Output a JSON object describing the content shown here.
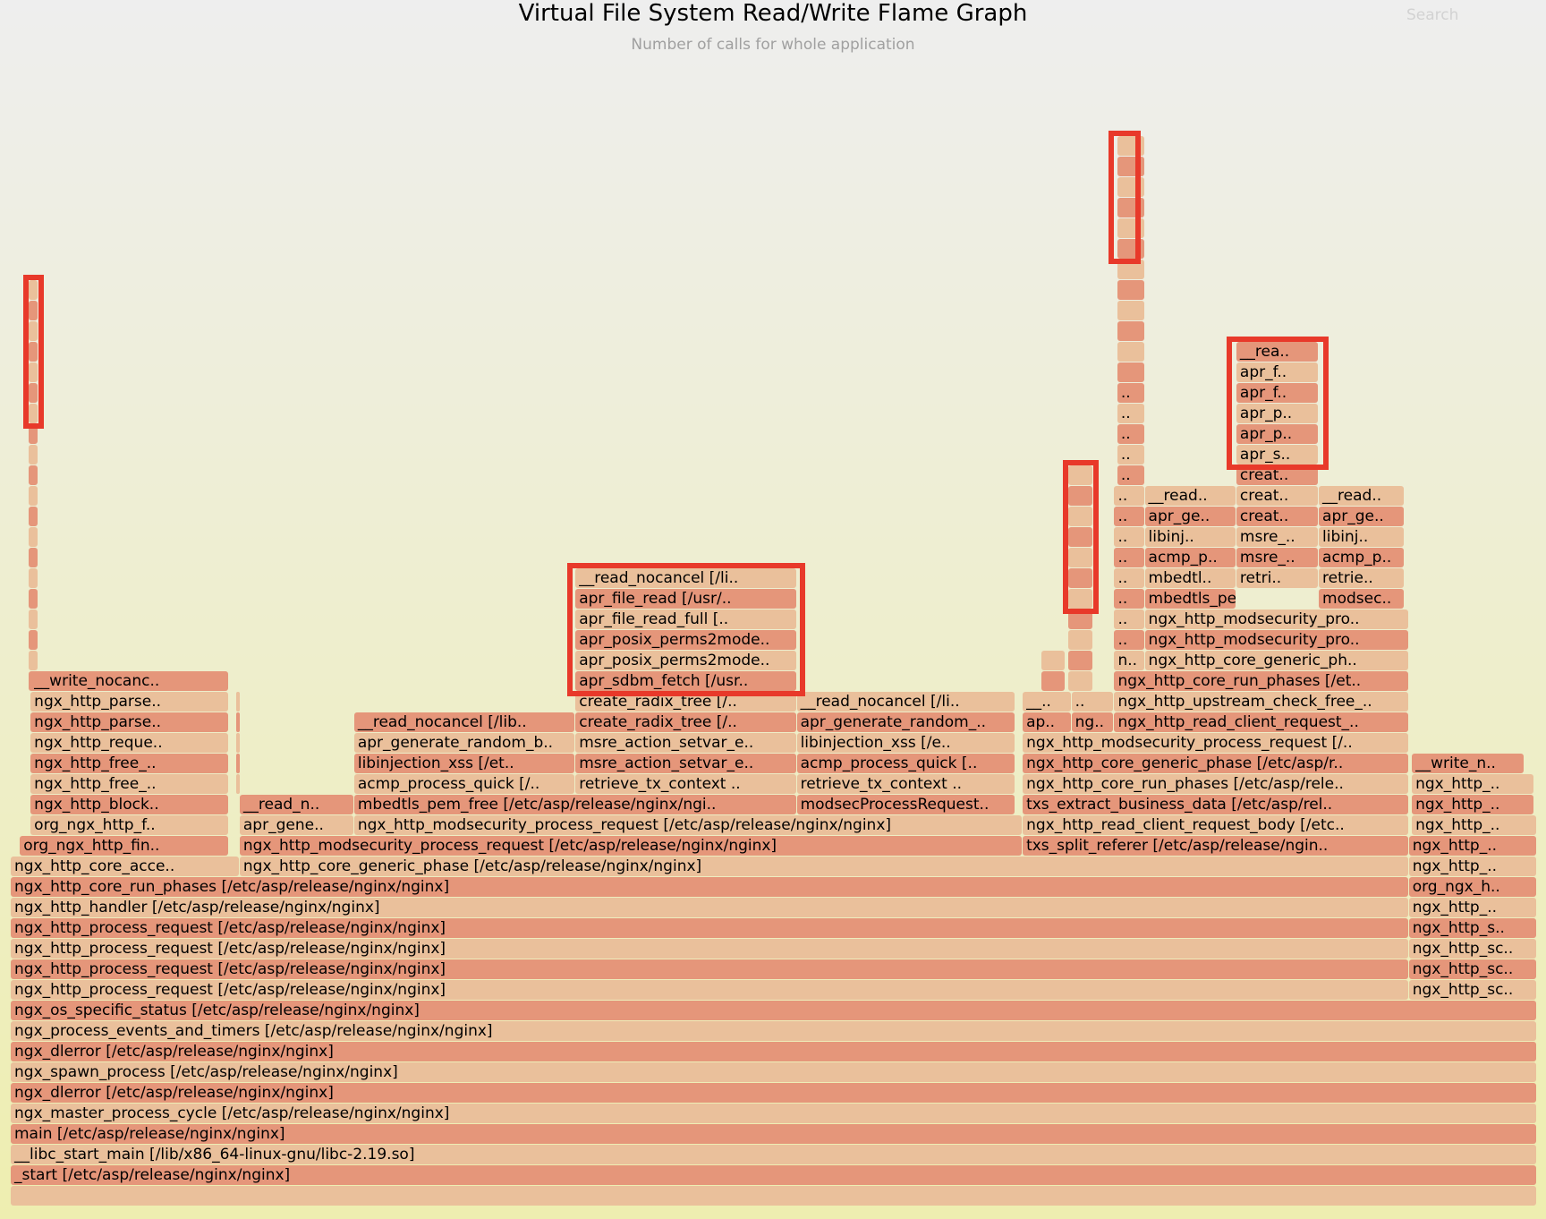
{
  "header": {
    "title": "Virtual File System Read/Write Flame Graph",
    "subtitle": "Number of calls for whole application",
    "search_label": "Search"
  },
  "colors": {
    "frame_dark": "#e5967a",
    "frame_light": "#eac09b",
    "highlight": "#e8392a",
    "background_top": "#eeeeee",
    "background_bottom": "#eeeeb0"
  },
  "chart_data": {
    "type": "flame_graph",
    "title": "Virtual File System Read/Write Flame Graph",
    "subtitle": "Number of calls for whole application",
    "unit": "calls",
    "total_samples": 1000,
    "depth_levels": 55,
    "frames": [
      {
        "label": "",
        "start": 0,
        "samples": 1000,
        "depth": 0
      },
      {
        "label": "_start [/etc/asp/release/nginx/nginx]",
        "start": 0,
        "samples": 1000,
        "depth": 1
      },
      {
        "label": "__libc_start_main [/lib/x86_64-linux-gnu/libc-2.19.so]",
        "start": 0,
        "samples": 1000,
        "depth": 2
      },
      {
        "label": "main [/etc/asp/release/nginx/nginx]",
        "start": 0,
        "samples": 1000,
        "depth": 3
      },
      {
        "label": "ngx_master_process_cycle [/etc/asp/release/nginx/nginx]",
        "start": 0,
        "samples": 1000,
        "depth": 4
      },
      {
        "label": "ngx_dlerror [/etc/asp/release/nginx/nginx]",
        "start": 0,
        "samples": 1000,
        "depth": 5
      },
      {
        "label": "ngx_spawn_process [/etc/asp/release/nginx/nginx]",
        "start": 0,
        "samples": 1000,
        "depth": 6
      },
      {
        "label": "ngx_dlerror [/etc/asp/release/nginx/nginx]",
        "start": 0,
        "samples": 1000,
        "depth": 7
      },
      {
        "label": "ngx_process_events_and_timers [/etc/asp/release/nginx/nginx]",
        "start": 0,
        "samples": 1000,
        "depth": 8
      },
      {
        "label": "ngx_os_specific_status [/etc/asp/release/nginx/nginx]",
        "start": 0,
        "samples": 1000,
        "depth": 9
      },
      {
        "label": "ngx_http_process_request [/etc/asp/release/nginx/nginx]",
        "start": 0,
        "samples": 916,
        "depth": 10
      },
      {
        "label": "ngx_http_process_request [/etc/asp/release/nginx/nginx]",
        "start": 0,
        "samples": 916,
        "depth": 11
      },
      {
        "label": "ngx_http_process_request [/etc/asp/release/nginx/nginx]",
        "start": 0,
        "samples": 916,
        "depth": 12
      },
      {
        "label": "ngx_http_process_request [/etc/asp/release/nginx/nginx]",
        "start": 0,
        "samples": 916,
        "depth": 13
      },
      {
        "label": "ngx_http_handler [/etc/asp/release/nginx/nginx]",
        "start": 0,
        "samples": 916,
        "depth": 14
      },
      {
        "label": "ngx_http_core_run_phases [/etc/asp/release/nginx/nginx]",
        "start": 0,
        "samples": 916,
        "depth": 15
      },
      {
        "label": "ngx_http_core_acce..",
        "start": 0,
        "samples": 150,
        "depth": 16
      },
      {
        "label": "ngx_http_core_generic_phase [/etc/asp/release/nginx/nginx]",
        "start": 150,
        "samples": 766,
        "depth": 16
      },
      {
        "label": "ngx_http_sc..",
        "start": 916,
        "samples": 84,
        "depth": 10
      },
      {
        "label": "ngx_http_sc..",
        "start": 916,
        "samples": 84,
        "depth": 11
      },
      {
        "label": "ngx_http_sc..",
        "start": 916,
        "samples": 84,
        "depth": 12
      },
      {
        "label": "ngx_http_s..",
        "start": 916,
        "samples": 84,
        "depth": 13
      },
      {
        "label": "ngx_http_..",
        "start": 916,
        "samples": 84,
        "depth": 14
      },
      {
        "label": "org_ngx_h..",
        "start": 916,
        "samples": 84,
        "depth": 15
      },
      {
        "label": "ngx_http_..",
        "start": 916,
        "samples": 84,
        "depth": 16
      },
      {
        "label": "ngx_http_..",
        "start": 916,
        "samples": 84,
        "depth": 17
      },
      {
        "label": "ngx_http_..",
        "start": 918,
        "samples": 82,
        "depth": 18
      },
      {
        "label": "ngx_http_..",
        "start": 918,
        "samples": 80,
        "depth": 19
      },
      {
        "label": "ngx_http_..",
        "start": 918,
        "samples": 80,
        "depth": 20
      },
      {
        "label": "__write_n..",
        "start": 918,
        "samples": 74,
        "depth": 21
      },
      {
        "label": "org_ngx_http_fin..",
        "start": 6,
        "samples": 137,
        "depth": 17
      },
      {
        "label": "org_ngx_http_f..",
        "start": 13,
        "samples": 130,
        "depth": 18
      },
      {
        "label": "ngx_http_block..",
        "start": 13,
        "samples": 130,
        "depth": 19
      },
      {
        "label": "ngx_http_free_..",
        "start": 13,
        "samples": 130,
        "depth": 20
      },
      {
        "label": "ngx_http_free_..",
        "start": 13,
        "samples": 130,
        "depth": 21
      },
      {
        "label": "ngx_http_reque..",
        "start": 13,
        "samples": 130,
        "depth": 22
      },
      {
        "label": "ngx_http_parse..",
        "start": 13,
        "samples": 130,
        "depth": 23
      },
      {
        "label": "ngx_http_parse..",
        "start": 13,
        "samples": 130,
        "depth": 24
      },
      {
        "label": "__write_nocanc..",
        "start": 13,
        "samples": 130,
        "depth": 25
      },
      {
        "label": "ngx_http_modsecurity_process_request [/etc/asp/release/nginx/nginx]",
        "start": 150,
        "samples": 513,
        "depth": 17
      },
      {
        "label": "apr_gene..",
        "start": 150,
        "samples": 75,
        "depth": 18
      },
      {
        "label": "__read_n..",
        "start": 150,
        "samples": 75,
        "depth": 19
      },
      {
        "label": "ngx_http_modsecurity_process_request [/etc/asp/release/nginx/nginx]",
        "start": 225,
        "samples": 438,
        "depth": 18
      },
      {
        "label": "mbedtls_pem_free [/etc/asp/release/nginx/ngi..",
        "start": 225,
        "samples": 290,
        "depth": 19
      },
      {
        "label": "acmp_process_quick [/..",
        "start": 225,
        "samples": 145,
        "depth": 20
      },
      {
        "label": "libinjection_xss [/et..",
        "start": 225,
        "samples": 145,
        "depth": 21
      },
      {
        "label": "apr_generate_random_b..",
        "start": 225,
        "samples": 145,
        "depth": 22
      },
      {
        "label": "__read_nocancel [/lib..",
        "start": 225,
        "samples": 145,
        "depth": 23
      },
      {
        "label": "retrieve_tx_context ..",
        "start": 370,
        "samples": 145,
        "depth": 20
      },
      {
        "label": "msre_action_setvar_e..",
        "start": 370,
        "samples": 145,
        "depth": 21
      },
      {
        "label": "msre_action_setvar_e..",
        "start": 370,
        "samples": 145,
        "depth": 22
      },
      {
        "label": "create_radix_tree [/..",
        "start": 370,
        "samples": 145,
        "depth": 23
      },
      {
        "label": "create_radix_tree [/..",
        "start": 370,
        "samples": 145,
        "depth": 24
      },
      {
        "label": "apr_sdbm_fetch [/usr..",
        "start": 370,
        "samples": 145,
        "depth": 25
      },
      {
        "label": "apr_posix_perms2mode..",
        "start": 370,
        "samples": 145,
        "depth": 26
      },
      {
        "label": "apr_posix_perms2mode..",
        "start": 370,
        "samples": 145,
        "depth": 27
      },
      {
        "label": "apr_file_read_full [..",
        "start": 370,
        "samples": 145,
        "depth": 28
      },
      {
        "label": "apr_file_read [/usr/..",
        "start": 370,
        "samples": 145,
        "depth": 29
      },
      {
        "label": "__read_nocancel [/li..",
        "start": 370,
        "samples": 145,
        "depth": 30
      },
      {
        "label": "modsecProcessRequest..",
        "start": 515,
        "samples": 143,
        "depth": 19
      },
      {
        "label": "retrieve_tx_context ..",
        "start": 515,
        "samples": 143,
        "depth": 20
      },
      {
        "label": "acmp_process_quick [..",
        "start": 515,
        "samples": 143,
        "depth": 21
      },
      {
        "label": "libinjection_xss [/e..",
        "start": 515,
        "samples": 143,
        "depth": 22
      },
      {
        "label": "apr_generate_random_..",
        "start": 515,
        "samples": 143,
        "depth": 23
      },
      {
        "label": "__read_nocancel [/li..",
        "start": 515,
        "samples": 143,
        "depth": 24
      },
      {
        "label": "txs_split_referer [/etc/asp/release/ngin..",
        "start": 663,
        "samples": 253,
        "depth": 17
      },
      {
        "label": "ngx_http_read_client_request_body [/etc..",
        "start": 663,
        "samples": 253,
        "depth": 18
      },
      {
        "label": "txs_extract_business_data [/etc/asp/rel..",
        "start": 663,
        "samples": 253,
        "depth": 19
      },
      {
        "label": "ngx_http_core_run_phases [/etc/asp/rele..",
        "start": 663,
        "samples": 253,
        "depth": 20
      },
      {
        "label": "ngx_http_core_generic_phase [/etc/asp/r..",
        "start": 663,
        "samples": 253,
        "depth": 21
      },
      {
        "label": "ngx_http_modsecurity_process_request [/..",
        "start": 663,
        "samples": 253,
        "depth": 22
      },
      {
        "label": "ap..",
        "start": 663,
        "samples": 32,
        "depth": 23
      },
      {
        "label": "__..",
        "start": 663,
        "samples": 32,
        "depth": 24
      },
      {
        "label": "ng..",
        "start": 695,
        "samples": 28,
        "depth": 23
      },
      {
        "label": "..",
        "start": 695,
        "samples": 28,
        "depth": 24
      },
      {
        "label": "ngx_http_read_client_request_..",
        "start": 723,
        "samples": 193,
        "depth": 23
      },
      {
        "label": "ngx_http_upstream_check_free_..",
        "start": 723,
        "samples": 193,
        "depth": 24
      },
      {
        "label": "ngx_http_core_run_phases [/et..",
        "start": 723,
        "samples": 193,
        "depth": 25
      },
      {
        "label": "n..",
        "start": 723,
        "samples": 20,
        "depth": 26
      },
      {
        "label": "..",
        "start": 723,
        "samples": 20,
        "depth": 27
      },
      {
        "label": "..",
        "start": 723,
        "samples": 20,
        "depth": 28
      },
      {
        "label": "..",
        "start": 723,
        "samples": 20,
        "depth": 29
      },
      {
        "label": "..",
        "start": 723,
        "samples": 20,
        "depth": 30
      },
      {
        "label": "..",
        "start": 723,
        "samples": 20,
        "depth": 31
      },
      {
        "label": "..",
        "start": 723,
        "samples": 20,
        "depth": 32
      },
      {
        "label": "..",
        "start": 723,
        "samples": 20,
        "depth": 33
      },
      {
        "label": "..",
        "start": 723,
        "samples": 20,
        "depth": 34
      },
      {
        "label": "..",
        "start": 725,
        "samples": 18,
        "depth": 35
      },
      {
        "label": "..",
        "start": 725,
        "samples": 18,
        "depth": 36
      },
      {
        "label": "..",
        "start": 725,
        "samples": 18,
        "depth": 37
      },
      {
        "label": "..",
        "start": 725,
        "samples": 18,
        "depth": 38
      },
      {
        "label": "..",
        "start": 725,
        "samples": 18,
        "depth": 39
      },
      {
        "label": "ngx_http_core_generic_ph..",
        "start": 743,
        "samples": 173,
        "depth": 26
      },
      {
        "label": "ngx_http_modsecurity_pro..",
        "start": 743,
        "samples": 173,
        "depth": 27
      },
      {
        "label": "ngx_http_modsecurity_pro..",
        "start": 743,
        "samples": 173,
        "depth": 28
      },
      {
        "label": "mbedtls_pem_fr..",
        "start": 743,
        "samples": 60,
        "depth": 29
      },
      {
        "label": "mbedtl..",
        "start": 743,
        "samples": 60,
        "depth": 30
      },
      {
        "label": "acmp_p..",
        "start": 743,
        "samples": 60,
        "depth": 31
      },
      {
        "label": "libinj..",
        "start": 743,
        "samples": 60,
        "depth": 32
      },
      {
        "label": "apr_ge..",
        "start": 743,
        "samples": 60,
        "depth": 33
      },
      {
        "label": "__read..",
        "start": 743,
        "samples": 60,
        "depth": 34
      },
      {
        "label": "retri..",
        "start": 803,
        "samples": 54,
        "depth": 30
      },
      {
        "label": "msre_..",
        "start": 803,
        "samples": 54,
        "depth": 31
      },
      {
        "label": "msre_..",
        "start": 803,
        "samples": 54,
        "depth": 32
      },
      {
        "label": "creat..",
        "start": 803,
        "samples": 54,
        "depth": 33
      },
      {
        "label": "creat..",
        "start": 803,
        "samples": 54,
        "depth": 34
      },
      {
        "label": "creat..",
        "start": 803,
        "samples": 54,
        "depth": 35
      },
      {
        "label": "apr_s..",
        "start": 803,
        "samples": 54,
        "depth": 36
      },
      {
        "label": "apr_p..",
        "start": 803,
        "samples": 54,
        "depth": 37
      },
      {
        "label": "apr_p..",
        "start": 803,
        "samples": 54,
        "depth": 38
      },
      {
        "label": "apr_f..",
        "start": 803,
        "samples": 54,
        "depth": 39
      },
      {
        "label": "apr_f..",
        "start": 803,
        "samples": 54,
        "depth": 40
      },
      {
        "label": "__rea..",
        "start": 803,
        "samples": 54,
        "depth": 41
      },
      {
        "label": "modsec..",
        "start": 857,
        "samples": 56,
        "depth": 29
      },
      {
        "label": "retrie..",
        "start": 857,
        "samples": 56,
        "depth": 30
      },
      {
        "label": "acmp_p..",
        "start": 857,
        "samples": 56,
        "depth": 31
      },
      {
        "label": "libinj..",
        "start": 857,
        "samples": 56,
        "depth": 32
      },
      {
        "label": "apr_ge..",
        "start": 857,
        "samples": 56,
        "depth": 33
      },
      {
        "label": "__read..",
        "start": 857,
        "samples": 56,
        "depth": 34
      }
    ],
    "highlighted_regions": [
      {
        "start": 12,
        "end": 18,
        "depth_from": 38,
        "depth_to": 44
      },
      {
        "start": 368,
        "end": 517,
        "depth_from": 25,
        "depth_to": 30
      },
      {
        "start": 693,
        "end": 709,
        "depth_from": 29,
        "depth_to": 35
      },
      {
        "start": 723,
        "end": 737,
        "depth_from": 46,
        "depth_to": 51
      },
      {
        "start": 800,
        "end": 860,
        "depth_from": 36,
        "depth_to": 41
      }
    ]
  }
}
